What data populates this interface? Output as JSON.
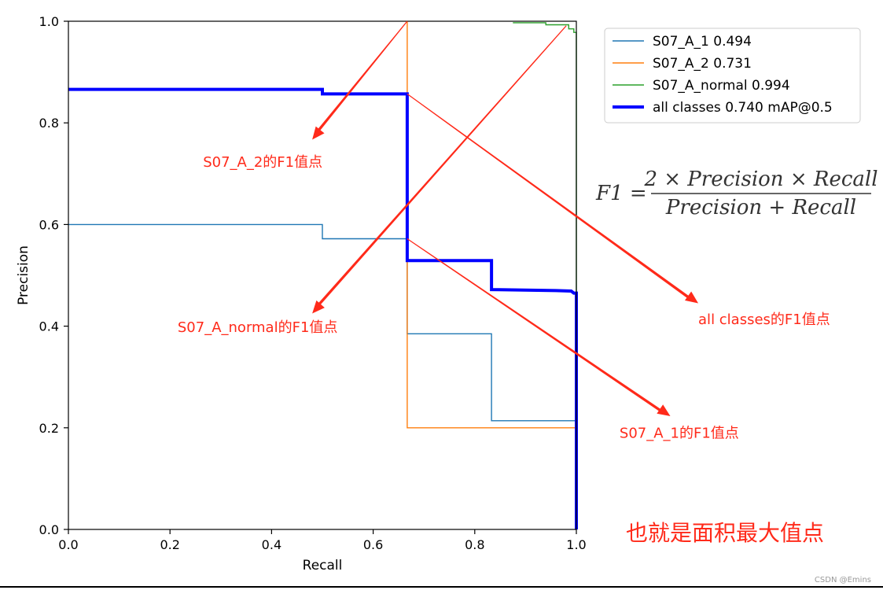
{
  "chart_data": {
    "type": "line",
    "xlabel": "Recall",
    "ylabel": "Precision",
    "xlim": [
      0,
      1
    ],
    "ylim": [
      0,
      1
    ],
    "xticks": [
      "0.0",
      "0.2",
      "0.4",
      "0.6",
      "0.8",
      "1.0"
    ],
    "yticks": [
      "0.0",
      "0.2",
      "0.4",
      "0.6",
      "0.8",
      "1.0"
    ],
    "grid": false,
    "legend_position": "top-right",
    "series": [
      {
        "name": "S07_A_1 0.494",
        "color": "#1f77b4",
        "width": "thin",
        "points": [
          [
            0,
            0.6
          ],
          [
            0.5,
            0.6
          ],
          [
            0.5,
            0.572
          ],
          [
            0.667,
            0.572
          ],
          [
            0.667,
            0.385
          ],
          [
            0.833,
            0.385
          ],
          [
            0.833,
            0.214
          ],
          [
            1.0,
            0.214
          ],
          [
            1.0,
            0.0
          ]
        ]
      },
      {
        "name": "S07_A_2 0.731",
        "color": "#ff7f0e",
        "width": "thin",
        "points": [
          [
            0.667,
            1.0
          ],
          [
            0.667,
            0.2
          ],
          [
            1.0,
            0.2
          ],
          [
            1.0,
            0.0
          ]
        ]
      },
      {
        "name": "S07_A_normal 0.994",
        "color": "#2ca02c",
        "width": "thin",
        "points": [
          [
            0.875,
            0.997
          ],
          [
            0.94,
            0.997
          ],
          [
            0.94,
            0.993
          ],
          [
            0.985,
            0.993
          ],
          [
            0.985,
            0.985
          ],
          [
            0.995,
            0.985
          ],
          [
            0.995,
            0.978
          ],
          [
            1.0,
            0.978
          ],
          [
            1.0,
            0.0
          ]
        ]
      },
      {
        "name": "all classes 0.740 mAP@0.5",
        "color": "#0000ff",
        "width": "thick",
        "points": [
          [
            0,
            0.866
          ],
          [
            0.5,
            0.866
          ],
          [
            0.5,
            0.857
          ],
          [
            0.667,
            0.857
          ],
          [
            0.667,
            0.529
          ],
          [
            0.833,
            0.529
          ],
          [
            0.833,
            0.472
          ],
          [
            0.96,
            0.47
          ],
          [
            0.99,
            0.469
          ],
          [
            0.995,
            0.465
          ],
          [
            1.0,
            0.465
          ],
          [
            1.0,
            0.0
          ]
        ]
      }
    ],
    "annotations": [
      {
        "text": "S07_A_2的F1值点",
        "x": 0.265,
        "y": 0.723,
        "arrow_from": [
          0.667,
          1.0
        ],
        "arrow_to": [
          0.48,
          0.767
        ]
      },
      {
        "text": "S07_A_normal的F1值点",
        "x": 0.215,
        "y": 0.398,
        "arrow_from": [
          0.98,
          0.991
        ],
        "arrow_to": [
          0.48,
          0.425
        ]
      },
      {
        "text": "all classes的F1值点",
        "x": 1.24,
        "y": 0.413,
        "arrow_from": [
          0.667,
          0.857
        ],
        "arrow_to": [
          1.24,
          0.445
        ]
      },
      {
        "text": "S07_A_1的F1值点",
        "x": 1.085,
        "y": 0.19,
        "arrow_from": [
          0.667,
          0.572
        ],
        "arrow_to": [
          1.185,
          0.223
        ]
      }
    ]
  },
  "formula": {
    "lhs": "F1 =",
    "numerator": "2 × Precision × Recall",
    "denominator": "Precision + Recall"
  },
  "note": "也就是面积最大值点",
  "watermark": "CSDN @Emins",
  "colors": {
    "annotation": "#ff2a1a"
  }
}
